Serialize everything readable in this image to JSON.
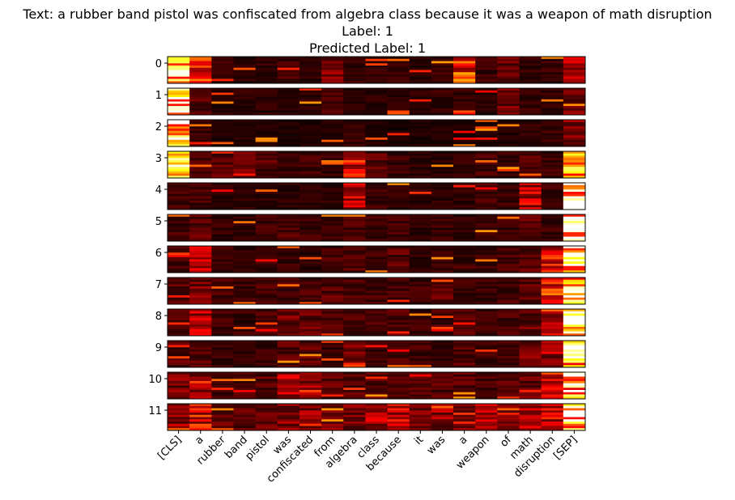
{
  "title_line1": "Text: a rubber band pistol was confiscated from algebra class because it was a weapon of math disruption",
  "title_line2": "Label: 1",
  "title_line3": "Predicted Label: 1",
  "chart_data": {
    "type": "heatmap",
    "colormap": "hot",
    "layers": [
      "0",
      "1",
      "2",
      "3",
      "4",
      "5",
      "6",
      "7",
      "8",
      "9",
      "10",
      "11"
    ],
    "tokens": [
      "[CLS]",
      "a",
      "rubber",
      "band",
      "pistol",
      "was",
      "confiscated",
      "from",
      "algebra",
      "class",
      "because",
      "it",
      "was",
      "a",
      "weapon",
      "of",
      "math",
      "disruption",
      "[SEP]"
    ],
    "rows_per_layer": 12,
    "token_intensity_by_layer": [
      [
        0.85,
        0.45,
        0.1,
        0.08,
        0.08,
        0.12,
        0.08,
        0.2,
        0.1,
        0.08,
        0.1,
        0.08,
        0.1,
        0.5,
        0.1,
        0.2,
        0.1,
        0.1,
        0.3
      ],
      [
        0.85,
        0.15,
        0.08,
        0.08,
        0.08,
        0.08,
        0.08,
        0.12,
        0.08,
        0.08,
        0.08,
        0.08,
        0.1,
        0.1,
        0.08,
        0.2,
        0.1,
        0.1,
        0.2
      ],
      [
        0.95,
        0.1,
        0.06,
        0.06,
        0.06,
        0.06,
        0.06,
        0.06,
        0.1,
        0.06,
        0.06,
        0.06,
        0.06,
        0.06,
        0.06,
        0.06,
        0.08,
        0.1,
        0.25
      ],
      [
        0.8,
        0.12,
        0.15,
        0.2,
        0.15,
        0.1,
        0.12,
        0.1,
        0.4,
        0.15,
        0.1,
        0.08,
        0.08,
        0.08,
        0.12,
        0.1,
        0.15,
        0.1,
        0.7
      ],
      [
        0.12,
        0.12,
        0.08,
        0.08,
        0.08,
        0.08,
        0.08,
        0.08,
        0.35,
        0.1,
        0.08,
        0.08,
        0.08,
        0.08,
        0.12,
        0.1,
        0.35,
        0.1,
        0.95
      ],
      [
        0.12,
        0.15,
        0.1,
        0.08,
        0.12,
        0.15,
        0.1,
        0.1,
        0.12,
        0.1,
        0.12,
        0.08,
        0.1,
        0.08,
        0.1,
        0.1,
        0.15,
        0.1,
        0.9
      ],
      [
        0.12,
        0.3,
        0.1,
        0.08,
        0.1,
        0.12,
        0.08,
        0.12,
        0.15,
        0.1,
        0.15,
        0.08,
        0.1,
        0.12,
        0.1,
        0.12,
        0.15,
        0.4,
        0.85
      ],
      [
        0.15,
        0.2,
        0.12,
        0.1,
        0.12,
        0.12,
        0.12,
        0.15,
        0.12,
        0.12,
        0.12,
        0.1,
        0.15,
        0.1,
        0.1,
        0.12,
        0.15,
        0.45,
        0.88
      ],
      [
        0.15,
        0.3,
        0.12,
        0.1,
        0.12,
        0.2,
        0.18,
        0.15,
        0.15,
        0.12,
        0.15,
        0.1,
        0.12,
        0.15,
        0.12,
        0.12,
        0.18,
        0.25,
        0.92
      ],
      [
        0.15,
        0.15,
        0.1,
        0.08,
        0.1,
        0.15,
        0.15,
        0.1,
        0.2,
        0.1,
        0.12,
        0.12,
        0.1,
        0.15,
        0.1,
        0.12,
        0.2,
        0.25,
        0.95
      ],
      [
        0.2,
        0.25,
        0.12,
        0.12,
        0.15,
        0.3,
        0.25,
        0.15,
        0.15,
        0.15,
        0.18,
        0.15,
        0.15,
        0.15,
        0.12,
        0.15,
        0.2,
        0.4,
        0.85
      ],
      [
        0.25,
        0.4,
        0.18,
        0.15,
        0.18,
        0.25,
        0.25,
        0.25,
        0.2,
        0.3,
        0.35,
        0.2,
        0.25,
        0.2,
        0.3,
        0.2,
        0.3,
        0.35,
        0.85
      ]
    ]
  }
}
